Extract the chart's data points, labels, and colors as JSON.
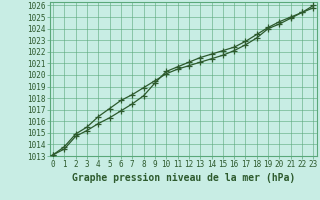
{
  "title": "Graphe pression niveau de la mer (hPa)",
  "bg_color": "#c8ede4",
  "grid_color": "#5aa87a",
  "line_color": "#2d5a2d",
  "xlim_min": -0.3,
  "xlim_max": 23.3,
  "ylim_min": 1013,
  "ylim_max": 1026.3,
  "x_ticks": [
    0,
    1,
    2,
    3,
    4,
    5,
    6,
    7,
    8,
    9,
    10,
    11,
    12,
    13,
    14,
    15,
    16,
    17,
    18,
    19,
    20,
    21,
    22,
    23
  ],
  "y_ticks": [
    1013,
    1014,
    1015,
    1016,
    1017,
    1018,
    1019,
    1020,
    1021,
    1022,
    1023,
    1024,
    1025,
    1026
  ],
  "series1_x": [
    0,
    1,
    2,
    3,
    4,
    5,
    6,
    7,
    8,
    9,
    10,
    11,
    12,
    13,
    14,
    15,
    16,
    17,
    18,
    19,
    20,
    21,
    22,
    23
  ],
  "series1_y": [
    1013.1,
    1013.6,
    1014.7,
    1015.2,
    1015.8,
    1016.3,
    1016.9,
    1017.5,
    1018.2,
    1019.3,
    1020.3,
    1020.7,
    1021.1,
    1021.5,
    1021.8,
    1022.1,
    1022.4,
    1022.9,
    1023.5,
    1024.1,
    1024.6,
    1025.0,
    1025.4,
    1025.8
  ],
  "series2_x": [
    0,
    1,
    2,
    3,
    4,
    5,
    6,
    7,
    8,
    9,
    10,
    11,
    12,
    13,
    14,
    15,
    16,
    17,
    18,
    19,
    20,
    21,
    22,
    23
  ],
  "series2_y": [
    1013.1,
    1013.8,
    1014.9,
    1015.5,
    1016.4,
    1017.1,
    1017.8,
    1018.3,
    1018.9,
    1019.5,
    1020.1,
    1020.5,
    1020.8,
    1021.1,
    1021.4,
    1021.7,
    1022.1,
    1022.6,
    1023.2,
    1024.0,
    1024.4,
    1024.9,
    1025.4,
    1026.0
  ],
  "tick_fontsize": 5.5,
  "xlabel_fontsize": 7,
  "tick_color": "#2d5a2d",
  "spine_color": "#5aa87a"
}
